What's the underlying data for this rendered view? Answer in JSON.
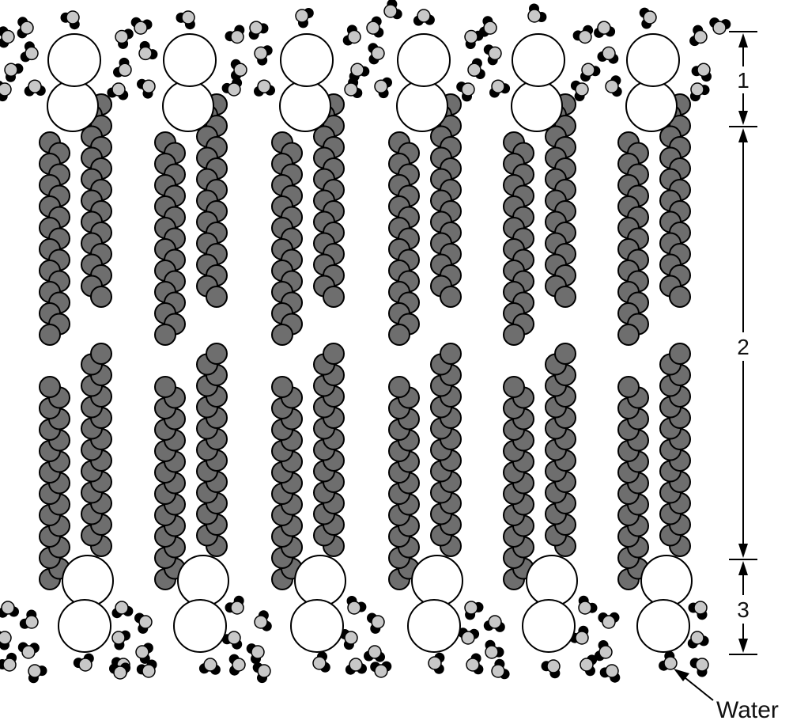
{
  "labels": {
    "zone_1": "1",
    "zone_2": "2",
    "zone_3": "3",
    "water": "Water"
  },
  "colors": {
    "tail_fill": "#6e6e6e",
    "head_fill": "#ffffff",
    "water_oxygen": "#c8c8c8",
    "water_hydrogen": "#000000",
    "stroke": "#000000"
  }
}
